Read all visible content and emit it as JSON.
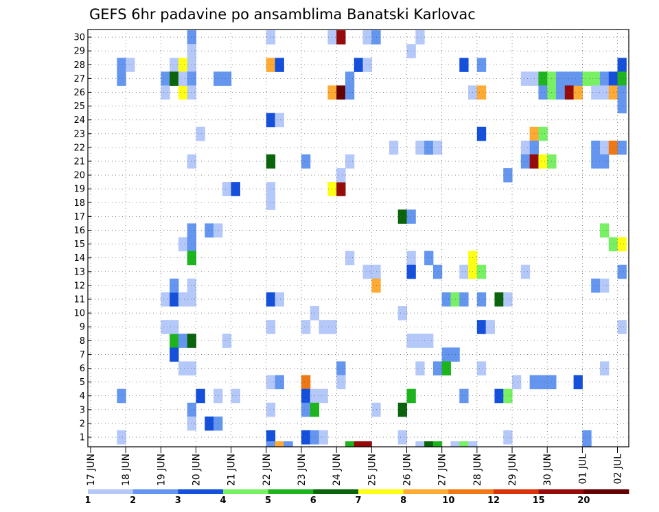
{
  "chart_data": {
    "type": "heatmap",
    "title": "GEFS 6hr padavine po ansamblima Banatski Karlovac",
    "xlabel": "",
    "ylabel": "",
    "y_ticks": [
      "1",
      "2",
      "3",
      "4",
      "5",
      "6",
      "7",
      "8",
      "9",
      "10",
      "11",
      "12",
      "13",
      "14",
      "15",
      "16",
      "17",
      "18",
      "19",
      "20",
      "21",
      "22",
      "23",
      "24",
      "25",
      "26",
      "27",
      "28",
      "29",
      "30"
    ],
    "x_ticks": [
      "17 JUN",
      "18 JUN",
      "19 JUN",
      "20 JUN",
      "21 JUN",
      "22 JUN",
      "23 JUN",
      "24 JUN",
      "25 JUN",
      "26 JUN",
      "27 JUN",
      "28 JUN",
      "29 JUN",
      "30 JUN",
      "01 JUL",
      "02 JUL"
    ],
    "grid": true,
    "colorbar": {
      "labels": [
        "1",
        "2",
        "3",
        "4",
        "5",
        "6",
        "7",
        "8",
        "10",
        "12",
        "15",
        "20"
      ],
      "colors": [
        "#b4c8fa",
        "#6496f0",
        "#1450dc",
        "#78f064",
        "#1eb41e",
        "#0a640a",
        "#ffff14",
        "#ffaa32",
        "#f07814",
        "#dc320a",
        "#960a0a",
        "#640000"
      ]
    },
    "cells": [
      [
        0.75,
        1,
        1
      ],
      [
        0.75,
        4,
        2
      ],
      [
        0.75,
        27,
        2
      ],
      [
        0.75,
        28,
        2
      ],
      [
        1,
        28,
        1
      ],
      [
        2,
        27,
        2
      ],
      [
        2,
        9,
        1
      ],
      [
        2,
        11,
        1
      ],
      [
        2,
        26,
        1
      ],
      [
        2.25,
        28,
        1
      ],
      [
        2.25,
        27,
        6
      ],
      [
        2.25,
        8,
        5
      ],
      [
        2.25,
        11,
        3
      ],
      [
        2.25,
        12,
        2
      ],
      [
        2.25,
        9,
        1
      ],
      [
        2.25,
        7,
        3
      ],
      [
        2.5,
        28,
        7
      ],
      [
        2.5,
        26,
        7
      ],
      [
        2.5,
        8,
        2
      ],
      [
        2.5,
        6,
        1
      ],
      [
        2.5,
        11,
        1
      ],
      [
        2.5,
        15,
        1
      ],
      [
        2.5,
        27,
        1
      ],
      [
        2.75,
        30,
        2
      ],
      [
        2.75,
        29,
        1
      ],
      [
        2.75,
        28,
        1
      ],
      [
        2.75,
        27,
        2
      ],
      [
        2.75,
        26,
        1
      ],
      [
        2.75,
        21,
        1
      ],
      [
        2.75,
        16,
        2
      ],
      [
        2.75,
        15,
        2
      ],
      [
        2.75,
        14,
        5
      ],
      [
        2.75,
        12,
        1
      ],
      [
        2.75,
        11,
        1
      ],
      [
        2.75,
        8,
        6
      ],
      [
        2.75,
        6,
        1
      ],
      [
        2.75,
        3,
        2
      ],
      [
        2.75,
        2,
        1
      ],
      [
        3,
        23,
        1
      ],
      [
        3,
        4,
        3
      ],
      [
        3.25,
        2,
        3
      ],
      [
        3.25,
        16,
        2
      ],
      [
        3.5,
        27,
        2
      ],
      [
        3.5,
        16,
        1
      ],
      [
        3.5,
        4,
        1
      ],
      [
        3.5,
        2,
        2
      ],
      [
        3.75,
        27,
        2
      ],
      [
        3.75,
        19,
        1
      ],
      [
        3.75,
        8,
        1
      ],
      [
        4,
        19,
        3
      ],
      [
        4,
        4,
        1
      ],
      [
        5,
        30,
        1
      ],
      [
        5,
        28,
        8
      ],
      [
        5,
        24,
        3
      ],
      [
        5,
        21,
        6
      ],
      [
        5,
        19,
        1
      ],
      [
        5,
        18,
        1
      ],
      [
        5,
        11,
        3
      ],
      [
        5,
        9,
        1
      ],
      [
        5,
        5,
        1
      ],
      [
        5,
        3,
        1
      ],
      [
        5,
        1,
        3
      ],
      [
        5.25,
        28,
        3
      ],
      [
        5.25,
        24,
        1
      ],
      [
        5.25,
        11,
        1
      ],
      [
        5.25,
        5,
        2
      ],
      [
        6,
        21,
        2
      ],
      [
        6,
        9,
        1
      ],
      [
        6,
        5,
        9
      ],
      [
        6,
        4,
        3
      ],
      [
        6,
        3,
        2
      ],
      [
        6,
        1,
        3
      ],
      [
        6.25,
        10,
        1
      ],
      [
        6.25,
        4,
        1
      ],
      [
        6.25,
        3,
        5
      ],
      [
        6.25,
        1,
        2
      ],
      [
        6.5,
        9,
        1
      ],
      [
        6.5,
        4,
        1
      ],
      [
        6.5,
        1,
        1
      ],
      [
        6.75,
        9,
        1
      ],
      [
        6.75,
        19,
        7
      ],
      [
        6.75,
        30,
        1
      ],
      [
        6.75,
        26,
        8
      ],
      [
        7,
        30,
        11
      ],
      [
        7,
        26,
        12
      ],
      [
        7,
        19,
        11
      ],
      [
        7,
        20,
        1
      ],
      [
        7,
        6,
        2
      ],
      [
        7,
        5,
        1
      ],
      [
        7.25,
        27,
        2
      ],
      [
        7.25,
        26,
        2
      ],
      [
        7.25,
        21,
        1
      ],
      [
        7.25,
        14,
        1
      ],
      [
        7.5,
        28,
        3
      ],
      [
        7.75,
        30,
        1
      ],
      [
        8,
        30,
        2
      ],
      [
        7.75,
        28,
        1
      ],
      [
        7.75,
        13,
        1
      ],
      [
        8,
        13,
        1
      ],
      [
        8,
        12,
        8
      ],
      [
        8,
        3,
        1
      ],
      [
        8.5,
        22,
        1
      ],
      [
        8.75,
        10,
        1
      ],
      [
        8.75,
        1,
        1
      ],
      [
        8.75,
        17,
        6
      ],
      [
        8.75,
        3,
        6
      ],
      [
        9,
        29,
        1
      ],
      [
        9,
        17,
        2
      ],
      [
        9,
        14,
        1
      ],
      [
        9,
        13,
        3
      ],
      [
        9,
        8,
        1
      ],
      [
        9,
        4,
        5
      ],
      [
        9.25,
        30,
        1
      ],
      [
        9.25,
        22,
        1
      ],
      [
        9.25,
        8,
        1
      ],
      [
        9.25,
        6,
        1
      ],
      [
        9.5,
        22,
        2
      ],
      [
        9.5,
        14,
        2
      ],
      [
        9.5,
        8,
        1
      ],
      [
        9.75,
        22,
        1
      ],
      [
        9.75,
        13,
        2
      ],
      [
        9.75,
        6,
        2
      ],
      [
        10,
        7,
        2
      ],
      [
        10,
        6,
        5
      ],
      [
        10,
        11,
        2
      ],
      [
        10.25,
        11,
        4
      ],
      [
        10.25,
        7,
        2
      ],
      [
        10.5,
        28,
        3
      ],
      [
        10.5,
        13,
        1
      ],
      [
        10.5,
        11,
        2
      ],
      [
        10.5,
        4,
        2
      ],
      [
        10.75,
        26,
        1
      ],
      [
        10.75,
        13,
        7
      ],
      [
        10.75,
        14,
        7
      ],
      [
        11,
        13,
        4
      ],
      [
        11,
        11,
        2
      ],
      [
        11,
        9,
        3
      ],
      [
        11,
        6,
        1
      ],
      [
        11,
        23,
        3
      ],
      [
        11,
        28,
        2
      ],
      [
        11,
        26,
        8
      ],
      [
        11.25,
        9,
        1
      ],
      [
        11.5,
        11,
        6
      ],
      [
        11.5,
        4,
        3
      ],
      [
        11.75,
        20,
        2
      ],
      [
        11.75,
        11,
        1
      ],
      [
        11.75,
        4,
        4
      ],
      [
        11.75,
        1,
        1
      ],
      [
        12,
        5,
        1
      ],
      [
        12.25,
        22,
        1
      ],
      [
        12.25,
        21,
        2
      ],
      [
        12.25,
        13,
        1
      ],
      [
        12.25,
        27,
        1
      ],
      [
        12.5,
        5,
        2
      ],
      [
        12.5,
        23,
        8
      ],
      [
        12.5,
        22,
        2
      ],
      [
        12.5,
        21,
        11
      ],
      [
        12.5,
        27,
        1
      ],
      [
        12.75,
        23,
        4
      ],
      [
        12.75,
        21,
        7
      ],
      [
        12.75,
        5,
        2
      ],
      [
        12.75,
        27,
        5
      ],
      [
        12.75,
        26,
        2
      ],
      [
        13,
        21,
        4
      ],
      [
        13,
        5,
        2
      ],
      [
        13,
        27,
        4
      ],
      [
        13,
        26,
        4
      ],
      [
        13.25,
        27,
        2
      ],
      [
        13.25,
        26,
        2
      ],
      [
        13.5,
        27,
        2
      ],
      [
        13.5,
        26,
        11
      ],
      [
        13.75,
        26,
        8
      ],
      [
        13.75,
        5,
        3
      ],
      [
        13.75,
        27,
        2
      ],
      [
        14,
        27,
        4
      ],
      [
        14,
        1,
        2
      ],
      [
        14.25,
        27,
        4
      ],
      [
        14.25,
        26,
        1
      ],
      [
        14.25,
        22,
        2
      ],
      [
        14.25,
        21,
        2
      ],
      [
        14.25,
        12,
        2
      ],
      [
        14.5,
        27,
        2
      ],
      [
        14.5,
        26,
        1
      ],
      [
        14.5,
        22,
        1
      ],
      [
        14.5,
        21,
        2
      ],
      [
        14.5,
        12,
        1
      ],
      [
        14.5,
        6,
        1
      ],
      [
        14.5,
        16,
        4
      ],
      [
        14.75,
        27,
        3
      ],
      [
        14.75,
        26,
        8
      ],
      [
        14.75,
        22,
        9
      ],
      [
        14.75,
        15,
        4
      ],
      [
        15,
        28,
        3
      ],
      [
        15,
        27,
        5
      ],
      [
        15,
        26,
        2
      ],
      [
        15,
        25,
        2
      ],
      [
        15,
        22,
        2
      ],
      [
        15,
        15,
        7
      ],
      [
        15,
        13,
        2
      ],
      [
        15,
        9,
        1
      ]
    ],
    "bottom_cells": [
      [
        5,
        2
      ],
      [
        5.25,
        8
      ],
      [
        5.5,
        2
      ],
      [
        7.25,
        5
      ],
      [
        7.5,
        11
      ],
      [
        7.75,
        11
      ],
      [
        9.25,
        1
      ],
      [
        9.5,
        6
      ],
      [
        9.75,
        5
      ],
      [
        10.25,
        1
      ],
      [
        10.5,
        4
      ],
      [
        10.75,
        1
      ],
      [
        14,
        2
      ]
    ]
  }
}
